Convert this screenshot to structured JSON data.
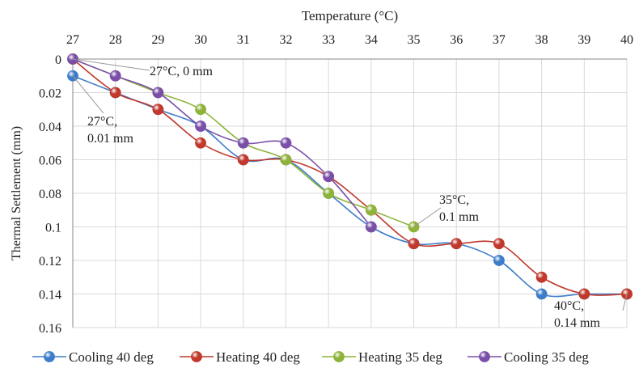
{
  "chart_data": {
    "type": "line",
    "title": "",
    "xlabel": "Temperature (°C)",
    "ylabel": "Thermal Settlement (mm)",
    "xlim": [
      27,
      40
    ],
    "ylim": [
      0,
      0.16
    ],
    "y_inverted": true,
    "x_axis_position": "top",
    "x_ticks": [
      "27",
      "28",
      "29",
      "30",
      "31",
      "32",
      "33",
      "34",
      "35",
      "36",
      "37",
      "38",
      "39",
      "40"
    ],
    "y_ticks": [
      "0",
      "0.02",
      "0.04",
      "0.06",
      "0.08",
      "0.1",
      "0.12",
      "0.14",
      "0.16"
    ],
    "grid": true,
    "legend_position": "bottom",
    "series": [
      {
        "name": "Cooling 40 deg",
        "color": "#3d7cc9",
        "x": [
          27,
          28,
          29,
          30,
          31,
          32,
          33,
          34,
          35,
          36,
          37,
          38,
          39,
          40
        ],
        "y": [
          0.01,
          0.02,
          0.03,
          0.04,
          0.06,
          0.06,
          0.08,
          0.1,
          0.11,
          0.11,
          0.12,
          0.14,
          0.14,
          0.14
        ]
      },
      {
        "name": "Heating 40 deg",
        "color": "#c0392b",
        "x": [
          27,
          28,
          29,
          30,
          31,
          32,
          33,
          34,
          35,
          36,
          37,
          38,
          39,
          40
        ],
        "y": [
          0,
          0.02,
          0.03,
          0.05,
          0.06,
          0.06,
          0.07,
          0.09,
          0.11,
          0.11,
          0.11,
          0.13,
          0.14,
          0.14
        ]
      },
      {
        "name": "Heating 35 deg",
        "color": "#8db33a",
        "x": [
          27,
          28,
          29,
          30,
          31,
          32,
          33,
          34,
          35
        ],
        "y": [
          0,
          0.01,
          0.02,
          0.03,
          0.05,
          0.06,
          0.08,
          0.09,
          0.1
        ]
      },
      {
        "name": "Cooling 35 deg",
        "color": "#7b4fa8",
        "x": [
          27,
          28,
          29,
          30,
          31,
          32,
          33,
          34
        ],
        "y": [
          0,
          0.01,
          0.02,
          0.04,
          0.05,
          0.05,
          0.07,
          0.1
        ]
      }
    ],
    "annotations": [
      {
        "lines": [
          "27°C, 0 mm"
        ],
        "x": 27,
        "y": 0
      },
      {
        "lines": [
          "27°C,",
          "0.01 mm"
        ],
        "x": 27,
        "y": 0.01
      },
      {
        "lines": [
          "35°C,",
          "0.1 mm"
        ],
        "x": 35,
        "y": 0.1
      },
      {
        "lines": [
          "40°C,",
          "0.14 mm"
        ],
        "x": 40,
        "y": 0.14
      }
    ]
  }
}
